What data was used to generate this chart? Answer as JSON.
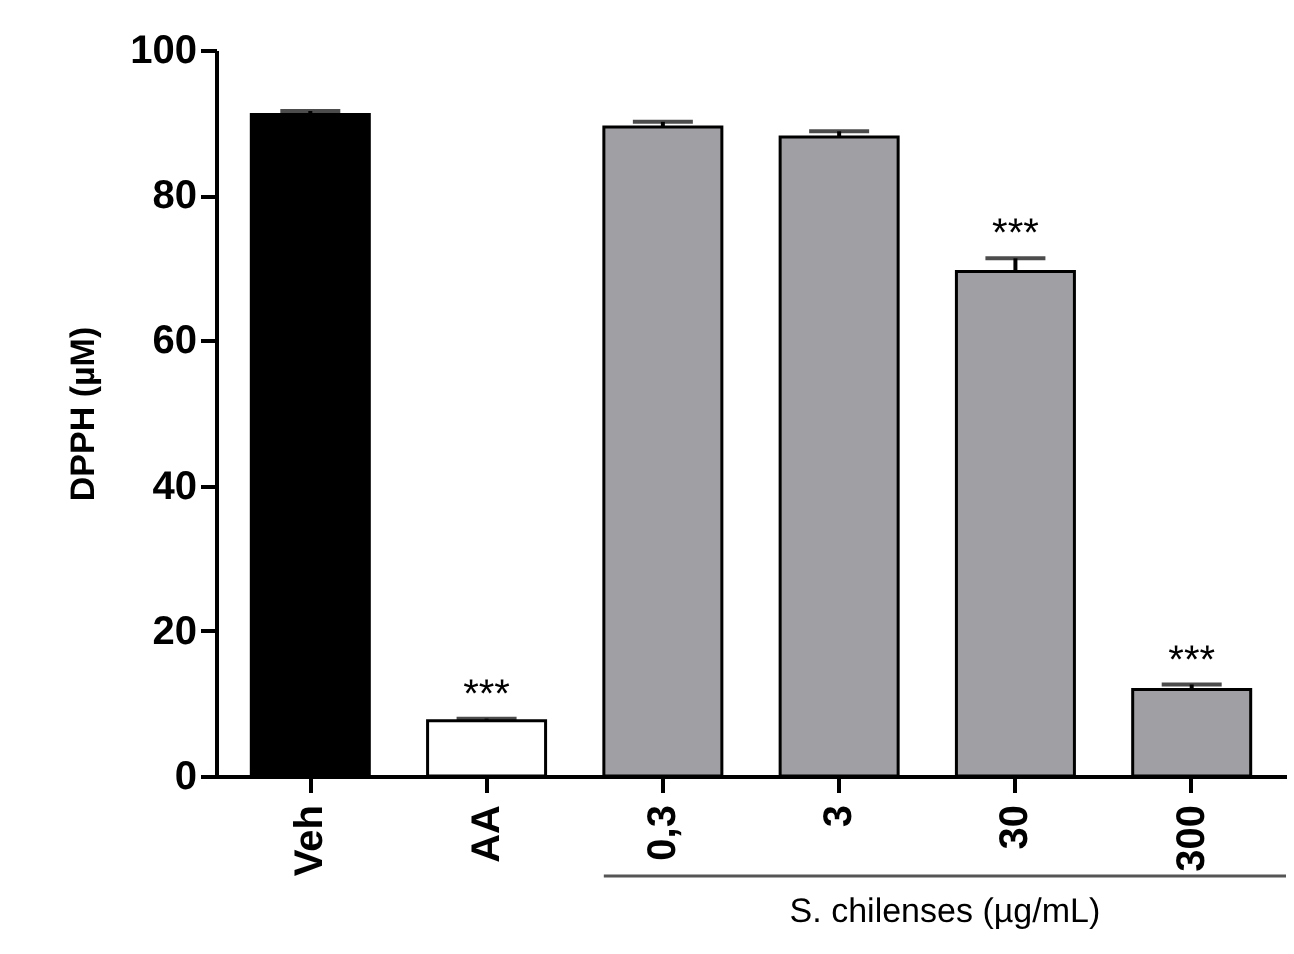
{
  "chart_data": {
    "type": "bar",
    "ylabel": "DPPH (µM)",
    "xlabel": "S. chilenses (µg/mL)",
    "categories": [
      "Veh",
      "AA",
      "0,3",
      "3",
      "30",
      "300"
    ],
    "values": [
      91.1,
      7.6,
      89.4,
      88.0,
      69.5,
      11.9
    ],
    "colors": [
      "#000000",
      "#ffffff",
      "#a0a0a4",
      "#a0a0a4",
      "#a0a0a4",
      "#a0a0a4"
    ],
    "errors": [
      0.5,
      0.3,
      0.7,
      0.8,
      1.8,
      0.7
    ],
    "ylim": [
      0,
      100
    ],
    "yticks": [
      0,
      20,
      40,
      60,
      80,
      100
    ],
    "grid": false,
    "annotations": [
      {
        "text": "***",
        "x": "AA",
        "y": 7.9
      },
      {
        "text": "***",
        "x": "30",
        "y": 71.3
      },
      {
        "text": "***",
        "x": "300",
        "y": 12.6
      }
    ]
  }
}
